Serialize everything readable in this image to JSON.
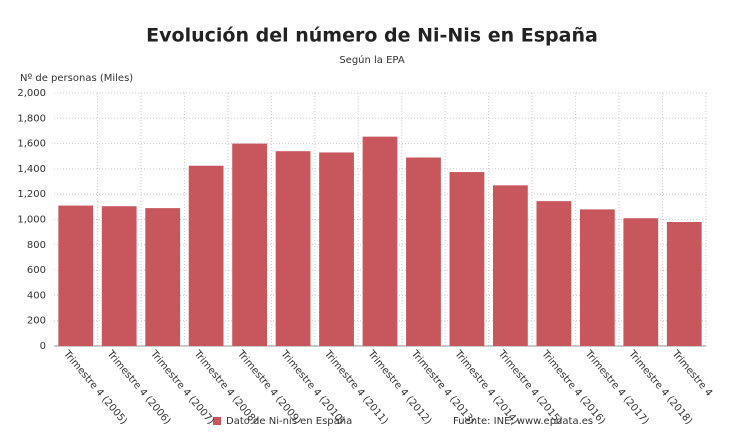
{
  "chart_data": {
    "type": "bar",
    "title": "Evolución del número de Ni-Nis en España",
    "subtitle": "Según la EPA",
    "y_label": "Nº de personas (Miles)",
    "categories": [
      "Trimestre 4 (2005)",
      "Trimestre 4 (2006)",
      "Trimestre 4 (2007)",
      "Trimestre 4 (2008)",
      "Trimestre 4 (2009)",
      "Trimestre 4 (2010)",
      "Trimestre 4 (2011)",
      "Trimestre 4 (2012)",
      "Trimestre 4 (2013)",
      "Trimestre 4 (2014)",
      "Trimestre 4 (2015)",
      "Trimestre 4 (2016)",
      "Trimestre 4 (2017)",
      "Trimestre 4 (2018)",
      "Trimestre 4"
    ],
    "series": [
      {
        "name": "Dato de Ni-nis en España",
        "color": "#c8565d",
        "values": [
          1110,
          1105,
          1090,
          1425,
          1600,
          1540,
          1530,
          1655,
          1490,
          1375,
          1270,
          1145,
          1080,
          1010,
          980
        ]
      }
    ],
    "ylim": [
      0,
      2000
    ],
    "yticks": [
      0,
      200,
      400,
      600,
      800,
      {
        "value": 1000,
        "label": "1,000"
      },
      {
        "value": 1200,
        "label": "1,200"
      },
      {
        "value": 1400,
        "label": "1,400"
      },
      {
        "value": 1600,
        "label": "1,600"
      },
      {
        "value": 1800,
        "label": "1,800"
      },
      {
        "value": 2000,
        "label": "2,000"
      }
    ],
    "grid": true,
    "source": "Fuente: INE, www.epdata.es"
  }
}
